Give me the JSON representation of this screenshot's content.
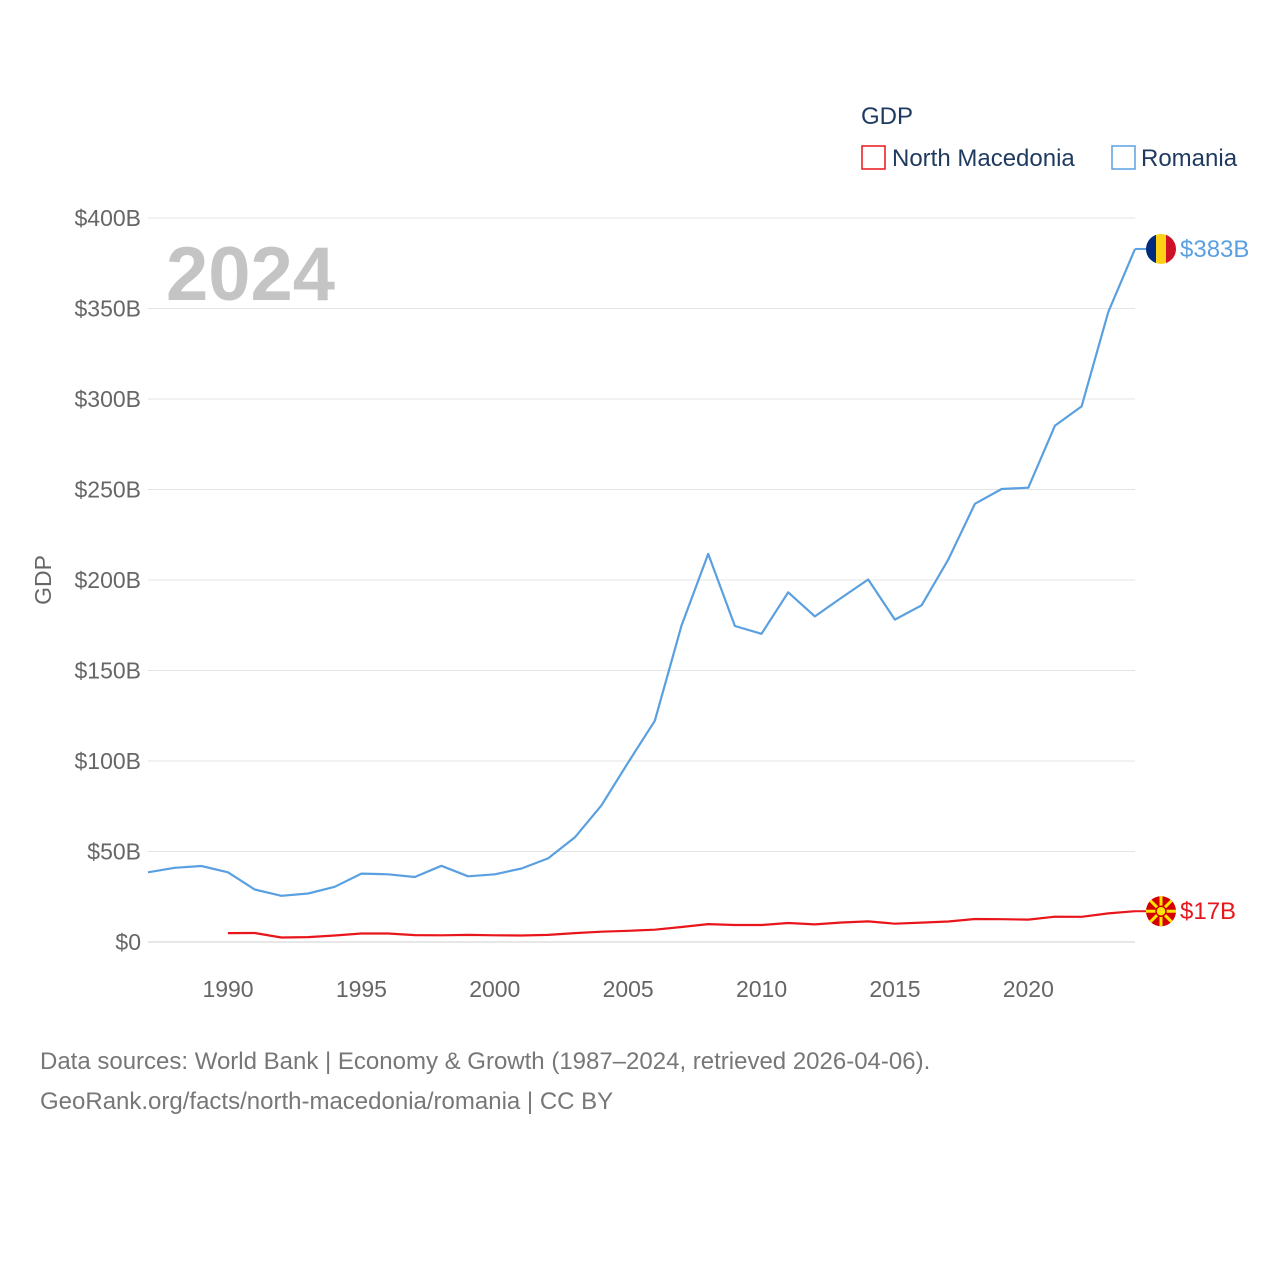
{
  "chart_data": {
    "type": "line",
    "ylabel": "GDP",
    "legend_title": "GDP",
    "legend_position": "top-right",
    "year_overlay": "2024",
    "ylim": [
      0,
      400
    ],
    "xlim": [
      1987,
      2024
    ],
    "y_ticks": [
      {
        "value": 0,
        "label": "$0"
      },
      {
        "value": 50,
        "label": "$50B"
      },
      {
        "value": 100,
        "label": "$100B"
      },
      {
        "value": 150,
        "label": "$150B"
      },
      {
        "value": 200,
        "label": "$200B"
      },
      {
        "value": 250,
        "label": "$250B"
      },
      {
        "value": 300,
        "label": "$300B"
      },
      {
        "value": 350,
        "label": "$350B"
      },
      {
        "value": 400,
        "label": "$400B"
      }
    ],
    "x_ticks": [
      {
        "value": 1990,
        "label": "1990"
      },
      {
        "value": 1995,
        "label": "1995"
      },
      {
        "value": 2000,
        "label": "2000"
      },
      {
        "value": 2005,
        "label": "2005"
      },
      {
        "value": 2010,
        "label": "2010"
      },
      {
        "value": 2015,
        "label": "2015"
      },
      {
        "value": 2020,
        "label": "2020"
      }
    ],
    "series": [
      {
        "name": "North Macedonia",
        "color": "#e8161b",
        "flag": "north-macedonia-flag",
        "end_label": "$17B",
        "x": [
          1990,
          1991,
          1992,
          1993,
          1994,
          1995,
          1996,
          1997,
          1998,
          1999,
          2000,
          2001,
          2002,
          2003,
          2004,
          2005,
          2006,
          2007,
          2008,
          2009,
          2010,
          2011,
          2012,
          2013,
          2014,
          2015,
          2016,
          2017,
          2018,
          2019,
          2020,
          2021,
          2022,
          2023,
          2024
        ],
        "values": [
          4.9,
          5.0,
          2.5,
          2.7,
          3.6,
          4.7,
          4.7,
          3.8,
          3.7,
          3.9,
          3.7,
          3.6,
          3.9,
          4.9,
          5.7,
          6.2,
          6.8,
          8.3,
          9.9,
          9.4,
          9.4,
          10.5,
          9.7,
          10.8,
          11.4,
          10.1,
          10.7,
          11.3,
          12.7,
          12.6,
          12.4,
          14.0,
          13.9,
          15.8,
          17.0
        ]
      },
      {
        "name": "Romania",
        "color": "#5aa0e0",
        "flag": "romania-flag",
        "end_label": "$383B",
        "x": [
          1987,
          1988,
          1989,
          1990,
          1991,
          1992,
          1993,
          1994,
          1995,
          1996,
          1997,
          1998,
          1999,
          2000,
          2001,
          2002,
          2003,
          2004,
          2005,
          2006,
          2007,
          2008,
          2009,
          2010,
          2011,
          2012,
          2013,
          2014,
          2015,
          2016,
          2017,
          2018,
          2019,
          2020,
          2021,
          2022,
          2023,
          2024
        ],
        "values": [
          38.5,
          41.0,
          42.0,
          38.5,
          29.0,
          25.5,
          26.8,
          30.5,
          37.8,
          37.4,
          35.9,
          42.1,
          36.3,
          37.4,
          40.6,
          46.2,
          57.8,
          75.5,
          99.2,
          122.2,
          174.8,
          214.4,
          174.6,
          170.3,
          193.2,
          179.9,
          190.3,
          200.3,
          178.1,
          186.0,
          211.3,
          242.1,
          250.3,
          251.0,
          285.3,
          295.9,
          348.1,
          382.9
        ]
      }
    ]
  },
  "footer": {
    "line1": "Data sources: World Bank | Economy & Growth (1987–2024, retrieved 2026-04-06).",
    "line2": "GeoRank.org/facts/north-macedonia/romania | CC BY"
  }
}
